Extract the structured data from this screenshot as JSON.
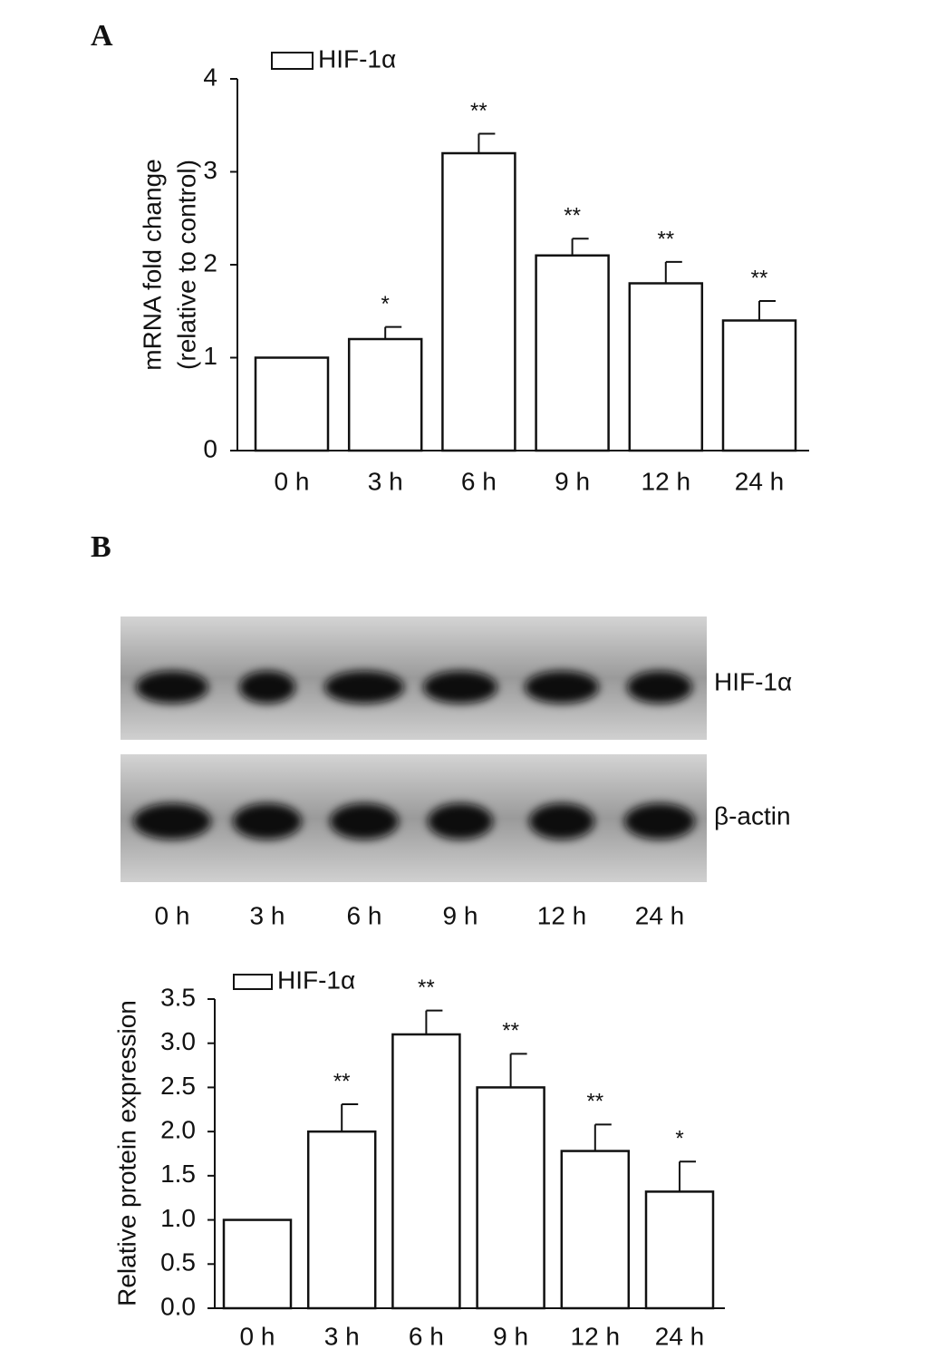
{
  "panels": [
    "A",
    "B"
  ],
  "chart_data": [
    {
      "type": "bar",
      "ylabel": [
        "mRNA fold change",
        "(relative to control)"
      ],
      "categories": [
        "0 h",
        "3 h",
        "6 h",
        "9 h",
        "12 h",
        "24 h"
      ],
      "series": [
        {
          "name": "HIF-1α",
          "color": "#ffffff",
          "values": [
            1.0,
            1.2,
            3.2,
            2.1,
            1.8,
            1.4
          ],
          "errors": [
            0,
            0.13,
            0.21,
            0.18,
            0.23,
            0.21
          ]
        }
      ],
      "annotations": [
        null,
        "*",
        "**",
        "**",
        "**",
        "**"
      ],
      "ylim": [
        0,
        4
      ],
      "yticks": [
        0,
        1,
        2,
        3,
        4
      ]
    },
    {
      "type": "bar",
      "ylabel": [
        "Relative protein expression"
      ],
      "categories": [
        "0 h",
        "3 h",
        "6 h",
        "9 h",
        "12 h",
        "24 h"
      ],
      "series": [
        {
          "name": "HIF-1α",
          "color": "#ffffff",
          "values": [
            1.0,
            2.0,
            3.1,
            2.5,
            1.78,
            1.32
          ],
          "errors": [
            0,
            0.31,
            0.27,
            0.38,
            0.3,
            0.34
          ]
        }
      ],
      "annotations": [
        null,
        "**",
        "**",
        "**",
        "**",
        "*"
      ],
      "ylim": [
        0,
        3.5
      ],
      "yticks": [
        {
          "value": 0,
          "label": "0.0"
        },
        0.5,
        {
          "value": 1,
          "label": "1.0"
        },
        1.5,
        {
          "value": 2,
          "label": "2.0"
        },
        2.5,
        {
          "value": 3,
          "label": "3.0"
        },
        3.5
      ]
    }
  ],
  "blot": {
    "rows": [
      "HIF-1α",
      "β-actin"
    ],
    "lanes": [
      "0 h",
      "3 h",
      "6 h",
      "9 h",
      "12 h",
      "24 h"
    ]
  }
}
